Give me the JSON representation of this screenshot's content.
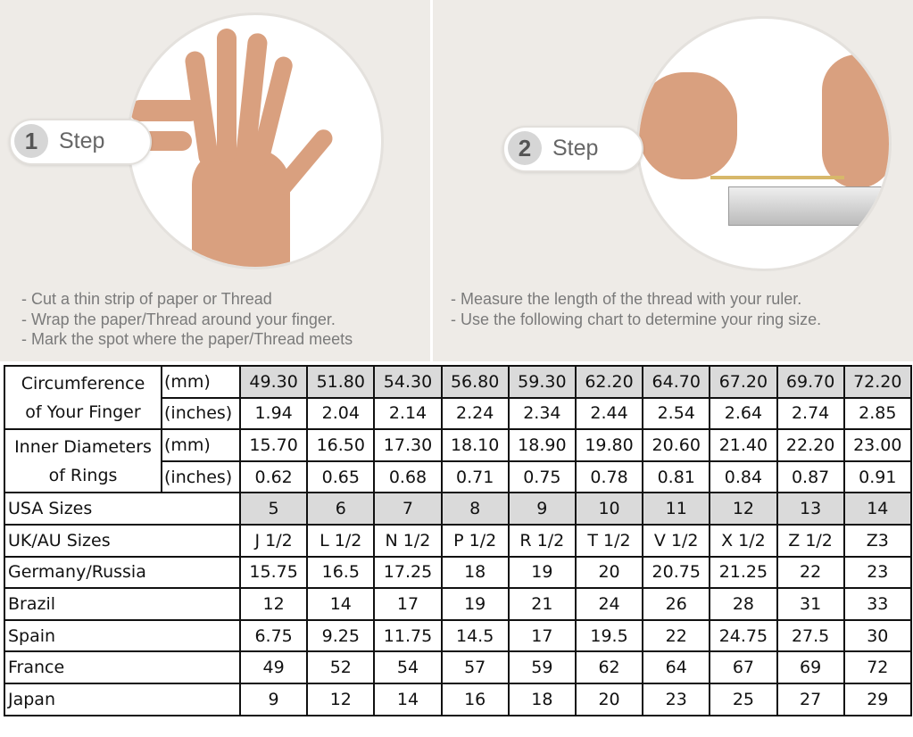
{
  "step1": {
    "number": "1",
    "label": "Step",
    "instructions": [
      "- Cut a thin strip of paper or Thread",
      "- Wrap the paper/Thread around your finger.",
      "- Mark the spot where the paper/Thread meets"
    ]
  },
  "step2": {
    "number": "2",
    "label": "Step",
    "instructions": [
      "- Measure the length of the thread with your ruler.",
      "- Use the following chart to determine your ring size."
    ]
  },
  "colors": {
    "shade": "#dadada",
    "panel": "#eeebe7",
    "border": "#111111"
  },
  "table": {
    "circumference": {
      "label_line1": "Circumference",
      "label_line2": "of Your Finger",
      "unit_mm": "(mm)",
      "unit_in": "(inches)",
      "mm": [
        "49.30",
        "51.80",
        "54.30",
        "56.80",
        "59.30",
        "62.20",
        "64.70",
        "67.20",
        "69.70",
        "72.20"
      ],
      "inches": [
        "1.94",
        "2.04",
        "2.14",
        "2.24",
        "2.34",
        "2.44",
        "2.54",
        "2.64",
        "2.74",
        "2.85"
      ]
    },
    "inner_diameter": {
      "label_line1": "Inner Diameters",
      "label_line2": "of Rings",
      "unit_mm": "(mm)",
      "unit_in": "(inches)",
      "mm": [
        "15.70",
        "16.50",
        "17.30",
        "18.10",
        "18.90",
        "19.80",
        "20.60",
        "21.40",
        "22.20",
        "23.00"
      ],
      "inches": [
        "0.62",
        "0.65",
        "0.68",
        "0.71",
        "0.75",
        "0.78",
        "0.81",
        "0.84",
        "0.87",
        "0.91"
      ]
    },
    "rows": [
      {
        "label": "USA Sizes",
        "values": [
          "5",
          "6",
          "7",
          "8",
          "9",
          "10",
          "11",
          "12",
          "13",
          "14"
        ],
        "shaded": true
      },
      {
        "label": "UK/AU Sizes",
        "values": [
          "J 1/2",
          "L 1/2",
          "N 1/2",
          "P 1/2",
          "R 1/2",
          "T 1/2",
          "V 1/2",
          "X 1/2",
          "Z 1/2",
          "Z3"
        ]
      },
      {
        "label": "Germany/Russia",
        "values": [
          "15.75",
          "16.5",
          "17.25",
          "18",
          "19",
          "20",
          "20.75",
          "21.25",
          "22",
          "23"
        ]
      },
      {
        "label": "Brazil",
        "values": [
          "12",
          "14",
          "17",
          "19",
          "21",
          "24",
          "26",
          "28",
          "31",
          "33"
        ]
      },
      {
        "label": "Spain",
        "values": [
          "6.75",
          "9.25",
          "11.75",
          "14.5",
          "17",
          "19.5",
          "22",
          "24.75",
          "27.5",
          "30"
        ]
      },
      {
        "label": "France",
        "values": [
          "49",
          "52",
          "54",
          "57",
          "59",
          "62",
          "64",
          "67",
          "69",
          "72"
        ]
      },
      {
        "label": "Japan",
        "values": [
          "9",
          "12",
          "14",
          "16",
          "18",
          "20",
          "23",
          "25",
          "27",
          "29"
        ]
      }
    ]
  }
}
